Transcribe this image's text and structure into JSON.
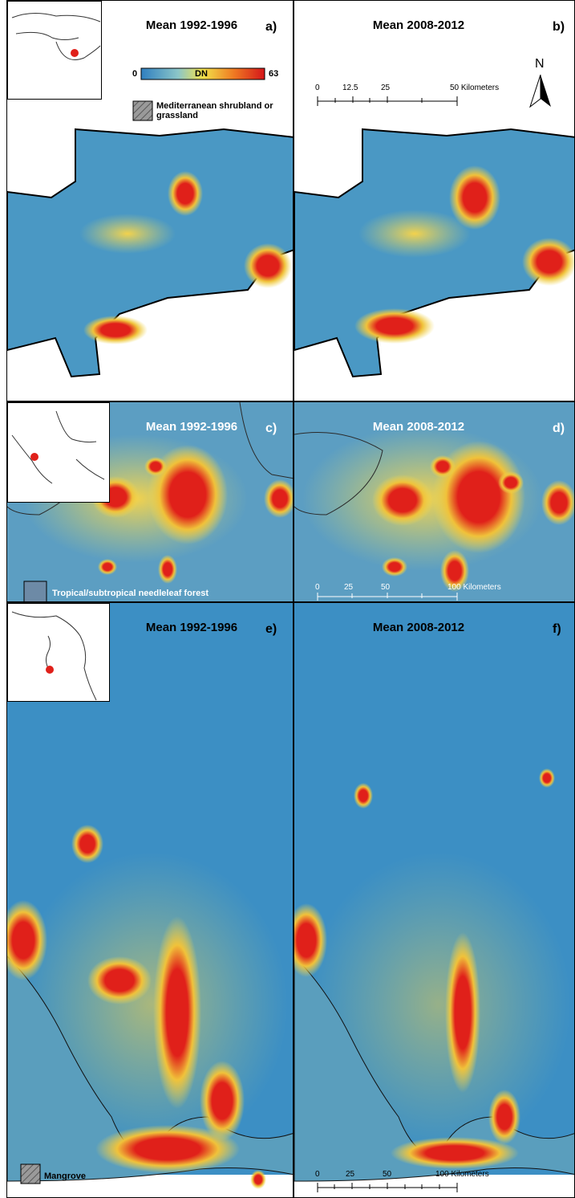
{
  "panels": {
    "a": {
      "title": "Mean 1992-1996",
      "label": "a)"
    },
    "b": {
      "title": "Mean 2008-2012",
      "label": "b)"
    },
    "c": {
      "title": "Mean 1992-1996",
      "label": "c)"
    },
    "d": {
      "title": "Mean 2008-2012",
      "label": "d)"
    },
    "e": {
      "title": "Mean 1992-1996",
      "label": "e)"
    },
    "f": {
      "title": "Mean 2008-2012",
      "label": "f)"
    }
  },
  "colorbar": {
    "min": "0",
    "mid": "DN",
    "max": "63"
  },
  "legends": {
    "shrubland": "Mediterranean shrubland or grassland",
    "needleleaf": "Tropical/subtropical needleleaf forest",
    "mangrove": "Mangrove"
  },
  "scalebars": {
    "b": {
      "ticks": [
        "0",
        "12.5",
        "25",
        "50 Kilometers"
      ]
    },
    "d": {
      "ticks": [
        "0",
        "25",
        "50",
        "100 Kilometers"
      ]
    },
    "f": {
      "ticks": [
        "0",
        "25",
        "50",
        "100 Kilometers"
      ]
    }
  },
  "north_arrow": "N",
  "colors": {
    "water": "#2e8bc0",
    "low": "#3a8fbf",
    "mid": "#e9d84a",
    "high": "#e0201a"
  }
}
